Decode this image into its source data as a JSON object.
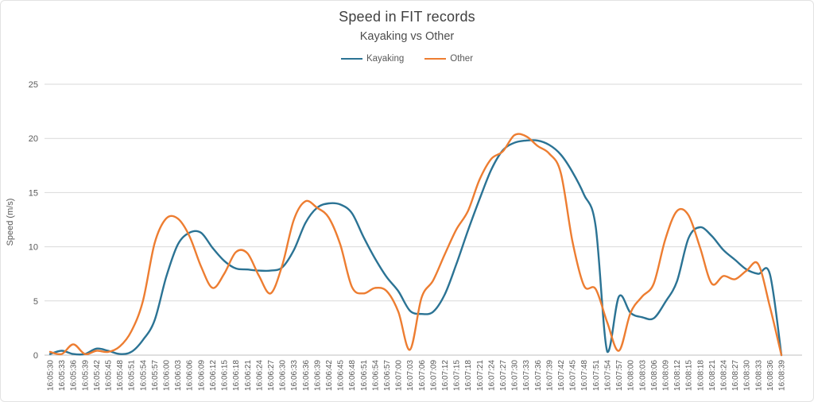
{
  "chart": {
    "title": "Speed in FIT records",
    "subtitle": "Kayaking vs Other"
  },
  "chart_data": {
    "type": "line",
    "title": "Speed in FIT records",
    "subtitle": "Kayaking vs Other",
    "xlabel": "",
    "ylabel": "Speed (m/s)",
    "ylim": [
      0,
      25
    ],
    "yticks": [
      0,
      5,
      10,
      15,
      20,
      25
    ],
    "grid": true,
    "legend_position": "top-center",
    "categories": [
      "16:05:30",
      "16:05:33",
      "16:05:36",
      "16:05:39",
      "16:05:42",
      "16:05:45",
      "16:05:48",
      "16:05:51",
      "16:05:54",
      "16:05:57",
      "16:06:00",
      "16:06:03",
      "16:06:06",
      "16:06:09",
      "16:06:12",
      "16:06:15",
      "16:06:18",
      "16:06:21",
      "16:06:24",
      "16:06:27",
      "16:06:30",
      "16:06:33",
      "16:06:36",
      "16:06:39",
      "16:06:42",
      "16:06:45",
      "16:06:48",
      "16:06:51",
      "16:06:54",
      "16:06:57",
      "16:07:00",
      "16:07:03",
      "16:07:06",
      "16:07:09",
      "16:07:12",
      "16:07:15",
      "16:07:18",
      "16:07:21",
      "16:07:24",
      "16:07:27",
      "16:07:30",
      "16:07:33",
      "16:07:36",
      "16:07:39",
      "16:07:42",
      "16:07:45",
      "16:07:48",
      "16:07:51",
      "16:07:54",
      "16:07:57",
      "16:08:00",
      "16:08:03",
      "16:08:06",
      "16:08:09",
      "16:08:12",
      "16:08:15",
      "16:08:18",
      "16:08:21",
      "16:08:24",
      "16:08:27",
      "16:08:30",
      "16:08:33",
      "16:08:36",
      "16:08:39"
    ],
    "series": [
      {
        "name": "Kayaking",
        "color": "#2B7394",
        "values": [
          0.1,
          0.4,
          0.1,
          0.1,
          0.6,
          0.4,
          0.1,
          0.3,
          1.4,
          3.2,
          7.2,
          10.2,
          11.3,
          11.3,
          9.9,
          8.7,
          8.0,
          7.9,
          7.8,
          7.8,
          8.1,
          9.7,
          12.2,
          13.6,
          14.0,
          13.9,
          13.1,
          10.9,
          8.9,
          7.2,
          5.9,
          4.1,
          3.8,
          4.0,
          5.6,
          8.4,
          11.5,
          14.4,
          17.1,
          18.9,
          19.6,
          19.8,
          19.8,
          19.4,
          18.5,
          16.9,
          14.8,
          11.9,
          0.3,
          5.4,
          3.9,
          3.5,
          3.4,
          4.9,
          6.8,
          10.8,
          11.8,
          11.0,
          9.7,
          8.8,
          7.9,
          7.5,
          7.5,
          0.0
        ]
      },
      {
        "name": "Other",
        "color": "#ED7D31",
        "values": [
          0.3,
          0.1,
          1.0,
          0.1,
          0.4,
          0.3,
          0.8,
          2.2,
          5.0,
          10.3,
          12.6,
          12.6,
          11.0,
          8.2,
          6.2,
          7.5,
          9.5,
          9.4,
          7.3,
          5.7,
          8.3,
          12.5,
          14.2,
          13.6,
          12.7,
          10.2,
          6.3,
          5.7,
          6.2,
          5.9,
          4.0,
          0.5,
          5.3,
          6.9,
          9.3,
          11.6,
          13.3,
          16.2,
          18.1,
          18.8,
          20.3,
          20.2,
          19.3,
          18.6,
          16.8,
          10.5,
          6.4,
          6.1,
          3.0,
          0.4,
          3.9,
          5.4,
          6.6,
          10.7,
          13.3,
          12.9,
          9.9,
          6.6,
          7.3,
          7.0,
          7.8,
          8.4,
          4.5,
          0.0
        ]
      }
    ]
  },
  "colors": {
    "gridline": "#D9D9D9",
    "axis_line": "#BFBFBF",
    "title_text": "#404040",
    "axis_text": "#595959",
    "background": "#FFFFFF"
  }
}
